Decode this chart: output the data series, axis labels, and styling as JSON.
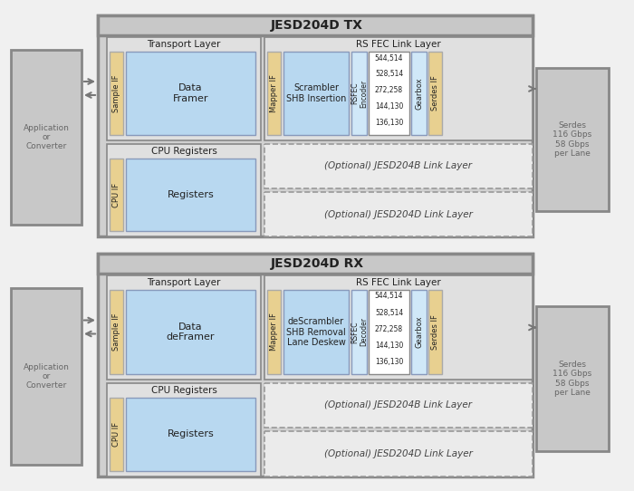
{
  "title_tx": "JESD204D TX",
  "title_rx": "JESD204D RX",
  "bg_color": "#f0f0f0",
  "outer_fill": "#d0d0d0",
  "outer_edge": "#888888",
  "titlebar_fill": "#c8c8c8",
  "section_fill": "#e0e0e0",
  "section_edge": "#888888",
  "blue_fill": "#b8d8f0",
  "light_blue_fill": "#d0e8f8",
  "tan_fill": "#e8d090",
  "white_fill": "#ffffff",
  "dashed_fill": "#ebebeb",
  "dashed_edge": "#999999",
  "text_dark": "#222222",
  "text_mid": "#444444",
  "text_gray": "#666666",
  "serdes_text": "Serdes\n116 Gbps\n58 Gbps\nper Lane",
  "app_text": "Application\nor\nConverter",
  "rates": [
    "544,514",
    "528,514",
    "272,258",
    "144,130",
    "136,130"
  ],
  "arrow_color": "#777777"
}
